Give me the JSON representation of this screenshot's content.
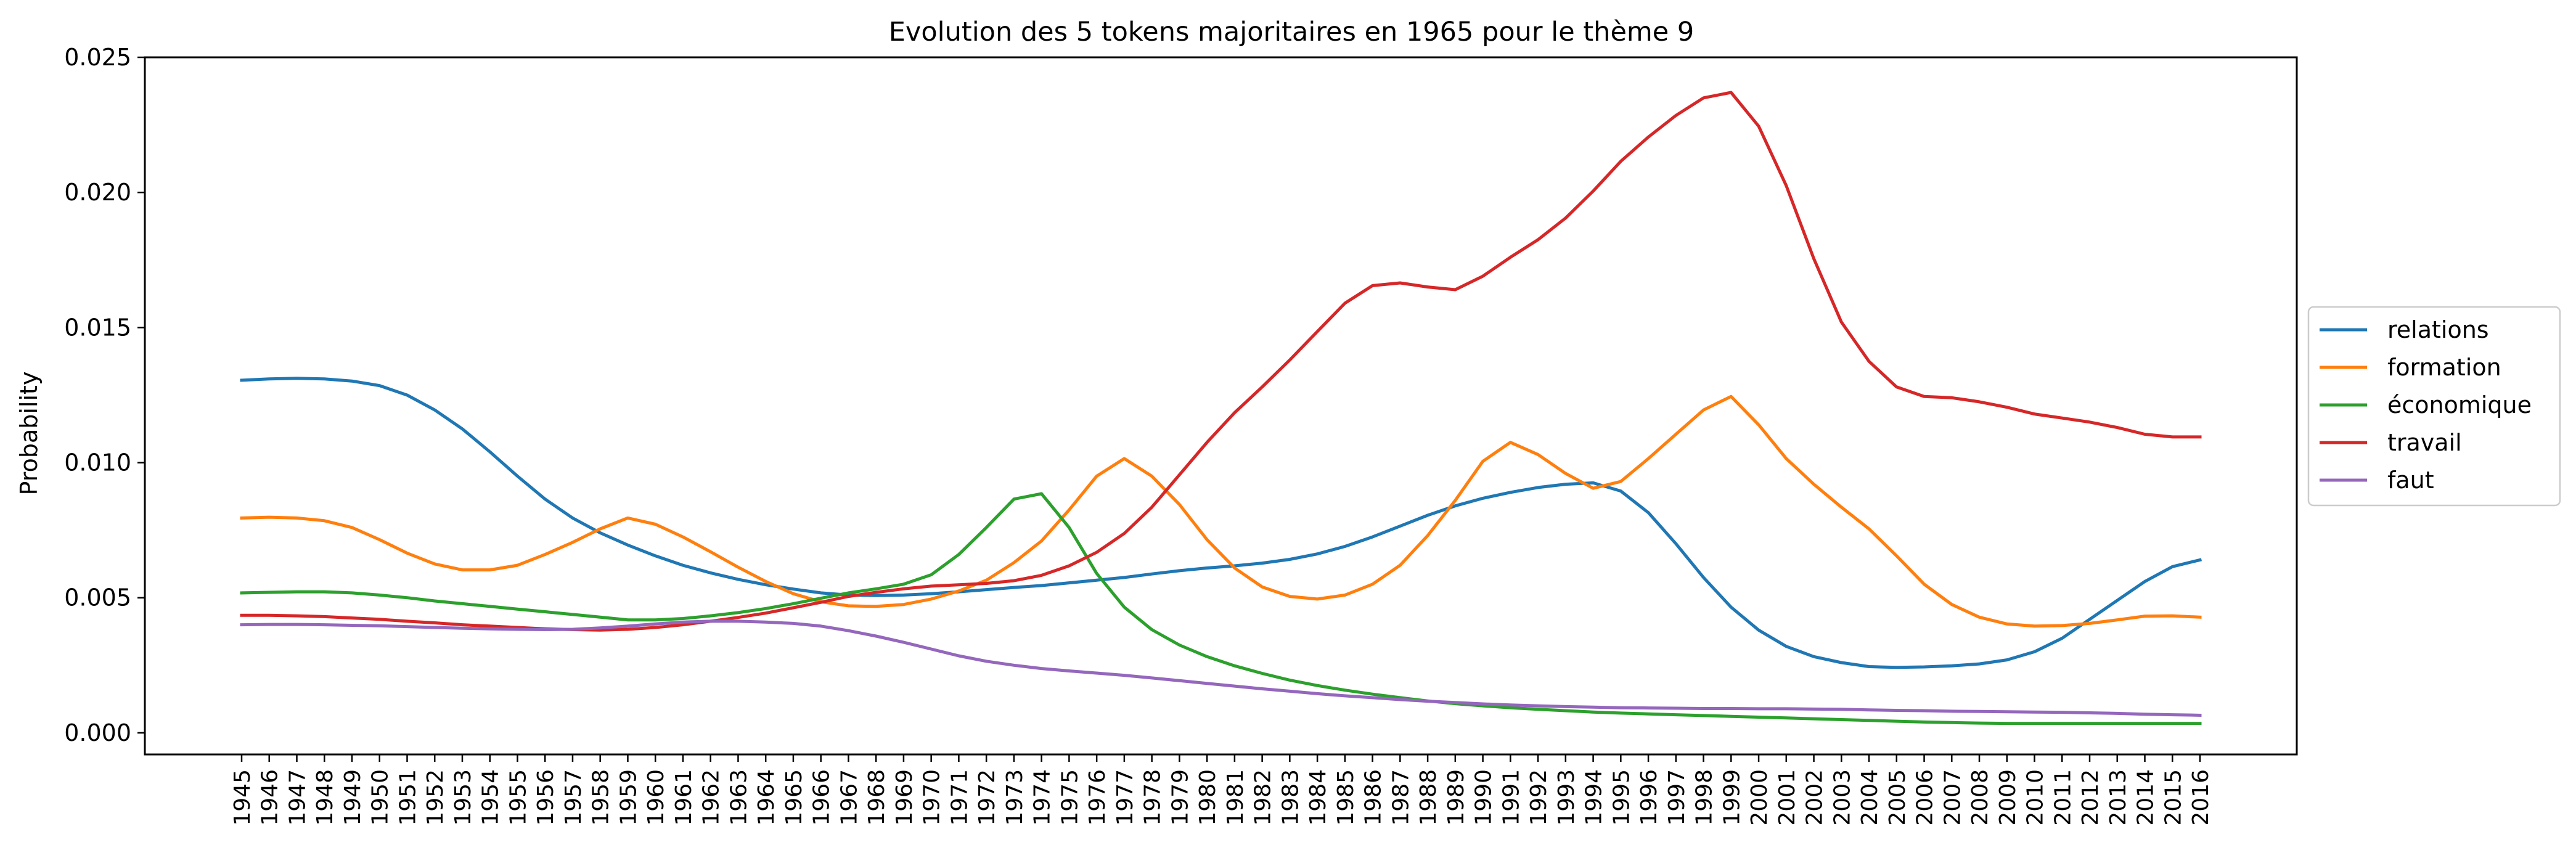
{
  "chart_data": {
    "type": "line",
    "title": "Evolution des 5 tokens majoritaires en 1965 pour le thème 9",
    "xlabel": "",
    "ylabel": "Probability",
    "ylim": [
      -0.0008,
      0.025
    ],
    "yticks": [
      0,
      0.005,
      0.01,
      0.015,
      0.02,
      0.025
    ],
    "ytick_labels": [
      "0.000",
      "0.005",
      "0.010",
      "0.015",
      "0.020",
      "0.025"
    ],
    "x": [
      1945,
      1946,
      1947,
      1948,
      1949,
      1950,
      1951,
      1952,
      1953,
      1954,
      1955,
      1956,
      1957,
      1958,
      1959,
      1960,
      1961,
      1962,
      1963,
      1964,
      1965,
      1966,
      1967,
      1968,
      1969,
      1970,
      1971,
      1972,
      1973,
      1974,
      1975,
      1976,
      1977,
      1978,
      1979,
      1980,
      1981,
      1982,
      1983,
      1984,
      1985,
      1986,
      1987,
      1988,
      1989,
      1990,
      1991,
      1992,
      1993,
      1994,
      1995,
      1996,
      1997,
      1998,
      1999,
      2000,
      2001,
      2002,
      2003,
      2004,
      2005,
      2006,
      2007,
      2008,
      2009,
      2010,
      2011,
      2012,
      2013,
      2014,
      2015,
      2016
    ],
    "grid": false,
    "legend_position": "center right, outside plot",
    "series": [
      {
        "name": "relations",
        "color": "#1f77b4",
        "values": [
          0.01305,
          0.0131,
          0.01312,
          0.0131,
          0.01302,
          0.01285,
          0.0125,
          0.01195,
          0.01125,
          0.0104,
          0.0095,
          0.00865,
          0.00795,
          0.0074,
          0.00695,
          0.00655,
          0.0062,
          0.00592,
          0.00568,
          0.00548,
          0.00532,
          0.00518,
          0.0051,
          0.00508,
          0.0051,
          0.00515,
          0.00522,
          0.0053,
          0.00538,
          0.00545,
          0.00555,
          0.00565,
          0.00575,
          0.00588,
          0.006,
          0.0061,
          0.00618,
          0.00628,
          0.00642,
          0.00662,
          0.0069,
          0.00725,
          0.00765,
          0.00805,
          0.0084,
          0.00868,
          0.0089,
          0.00908,
          0.0092,
          0.00925,
          0.00895,
          0.00815,
          0.007,
          0.00575,
          0.00465,
          0.0038,
          0.0032,
          0.00282,
          0.0026,
          0.00245,
          0.00242,
          0.00244,
          0.00248,
          0.00255,
          0.0027,
          0.003,
          0.0035,
          0.0042,
          0.0049,
          0.0056,
          0.00615,
          0.0064
        ]
      },
      {
        "name": "formation",
        "color": "#ff7f0e",
        "values": [
          0.00795,
          0.00798,
          0.00795,
          0.00785,
          0.0076,
          0.00715,
          0.00665,
          0.00625,
          0.00603,
          0.00603,
          0.0062,
          0.0066,
          0.00705,
          0.00755,
          0.00795,
          0.00772,
          0.00725,
          0.0067,
          0.00613,
          0.0056,
          0.00515,
          0.00485,
          0.0047,
          0.00468,
          0.00475,
          0.00495,
          0.00525,
          0.00565,
          0.0063,
          0.0071,
          0.00825,
          0.0095,
          0.01015,
          0.0095,
          0.00845,
          0.00715,
          0.0061,
          0.0054,
          0.00505,
          0.00495,
          0.0051,
          0.0055,
          0.0062,
          0.0073,
          0.0086,
          0.01005,
          0.01075,
          0.0103,
          0.0096,
          0.00905,
          0.0093,
          0.01015,
          0.01105,
          0.01195,
          0.01245,
          0.0114,
          0.01015,
          0.0092,
          0.00835,
          0.00755,
          0.00655,
          0.0055,
          0.00475,
          0.00428,
          0.00403,
          0.00395,
          0.00397,
          0.00405,
          0.00418,
          0.00432,
          0.00433,
          0.00428
        ]
      },
      {
        "name": "économique",
        "color": "#2ca02c",
        "values": [
          0.00518,
          0.0052,
          0.00522,
          0.00522,
          0.00518,
          0.0051,
          0.005,
          0.00488,
          0.00478,
          0.00468,
          0.00458,
          0.00448,
          0.00438,
          0.00428,
          0.00418,
          0.00418,
          0.00423,
          0.00433,
          0.00445,
          0.0046,
          0.00478,
          0.00498,
          0.00518,
          0.00533,
          0.0055,
          0.00585,
          0.0066,
          0.0076,
          0.00865,
          0.00885,
          0.0076,
          0.0059,
          0.00465,
          0.00382,
          0.00325,
          0.00282,
          0.00248,
          0.0022,
          0.00195,
          0.00175,
          0.00158,
          0.00143,
          0.0013,
          0.00118,
          0.00108,
          0.001,
          0.00093,
          0.00087,
          0.00082,
          0.00077,
          0.00073,
          0.0007,
          0.00067,
          0.00064,
          0.00061,
          0.00058,
          0.00055,
          0.00052,
          0.00049,
          0.00046,
          0.00043,
          0.0004,
          0.00038,
          0.00036,
          0.00035,
          0.00035,
          0.00035,
          0.00035,
          0.00035,
          0.00035,
          0.00035,
          0.00035
        ]
      },
      {
        "name": "travail",
        "color": "#d62728",
        "values": [
          0.00435,
          0.00435,
          0.00433,
          0.0043,
          0.00425,
          0.0042,
          0.00413,
          0.00407,
          0.004,
          0.00395,
          0.0039,
          0.00385,
          0.00382,
          0.0038,
          0.00383,
          0.0039,
          0.004,
          0.00413,
          0.00427,
          0.00443,
          0.00463,
          0.00483,
          0.00505,
          0.0052,
          0.00533,
          0.00543,
          0.00548,
          0.00553,
          0.00563,
          0.00583,
          0.00618,
          0.00668,
          0.00738,
          0.00835,
          0.00955,
          0.01075,
          0.01185,
          0.0128,
          0.0138,
          0.01485,
          0.0159,
          0.01655,
          0.01665,
          0.0165,
          0.0164,
          0.0169,
          0.0176,
          0.01825,
          0.01905,
          0.02005,
          0.02115,
          0.02205,
          0.02285,
          0.0235,
          0.0237,
          0.02245,
          0.02025,
          0.01755,
          0.0152,
          0.01375,
          0.0128,
          0.01245,
          0.0124,
          0.01225,
          0.01205,
          0.0118,
          0.01165,
          0.0115,
          0.0113,
          0.01105,
          0.01095,
          0.01095
        ]
      },
      {
        "name": "faut",
        "color": "#9467bd",
        "values": [
          0.004,
          0.00401,
          0.00401,
          0.004,
          0.00398,
          0.00396,
          0.00393,
          0.0039,
          0.00387,
          0.00385,
          0.00383,
          0.00382,
          0.00383,
          0.00388,
          0.00395,
          0.00403,
          0.0041,
          0.00413,
          0.00413,
          0.0041,
          0.00405,
          0.00395,
          0.00378,
          0.00358,
          0.00335,
          0.0031,
          0.00285,
          0.00265,
          0.0025,
          0.00238,
          0.00229,
          0.00221,
          0.00213,
          0.00203,
          0.00193,
          0.00183,
          0.00173,
          0.00163,
          0.00154,
          0.00145,
          0.00137,
          0.0013,
          0.00123,
          0.00117,
          0.00112,
          0.00107,
          0.00103,
          0.001,
          0.00097,
          0.00095,
          0.00093,
          0.00092,
          0.00091,
          0.0009,
          0.0009,
          0.00089,
          0.00089,
          0.00088,
          0.00087,
          0.00085,
          0.00083,
          0.00082,
          0.0008,
          0.00079,
          0.00078,
          0.00077,
          0.00076,
          0.00074,
          0.00072,
          0.00069,
          0.00067,
          0.00065
        ]
      }
    ]
  }
}
